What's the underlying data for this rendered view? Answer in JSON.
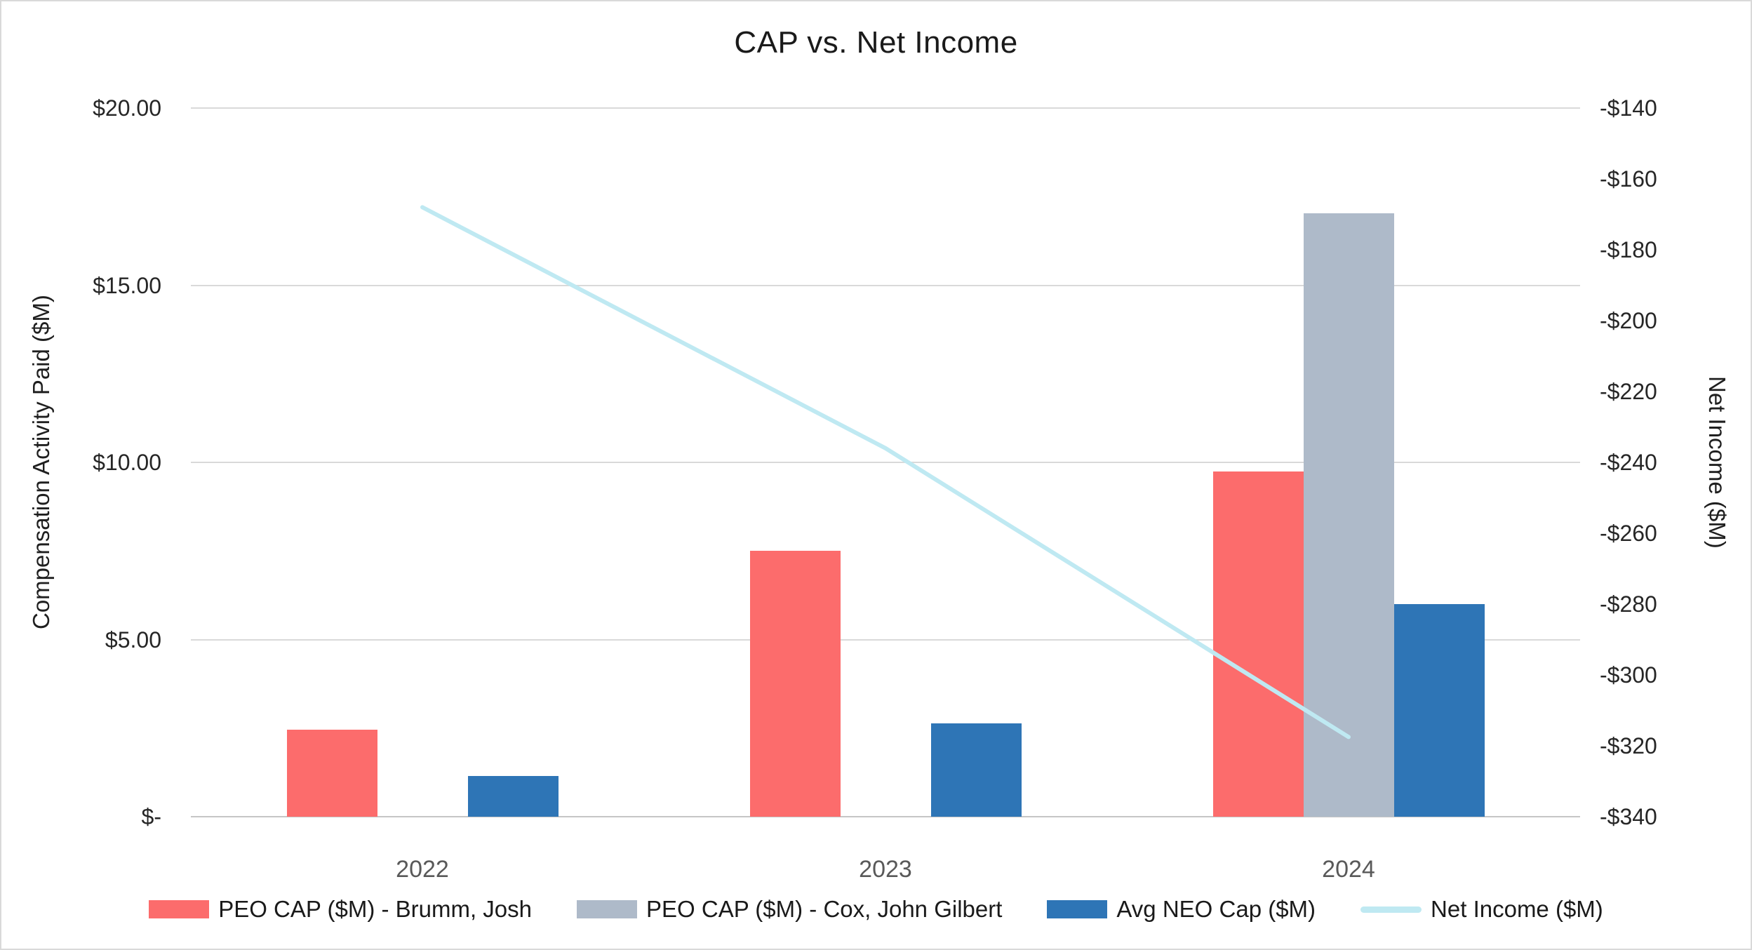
{
  "chart_data": {
    "type": "bar",
    "subtype": "grouped-bars-with-line-overlay",
    "title": "CAP vs. Net Income",
    "categories": [
      "2022",
      "2023",
      "2024"
    ],
    "series": [
      {
        "name": "PEO CAP ($M) - Brumm, Josh",
        "type": "bar",
        "axis": "left",
        "color": "#FC6C6C",
        "values": [
          2.46,
          7.5,
          9.75
        ]
      },
      {
        "name": "PEO CAP ($M) - Cox, John Gilbert",
        "type": "bar",
        "axis": "left",
        "color": "#AEBAC9",
        "values": [
          0,
          0,
          17.03
        ]
      },
      {
        "name": "Avg NEO Cap ($M)",
        "type": "bar",
        "axis": "left",
        "color": "#2E75B6",
        "values": [
          1.14,
          2.63,
          6.01
        ]
      },
      {
        "name": "Net Income ($M)",
        "type": "line",
        "axis": "right",
        "color": "#BFE9F2",
        "values": [
          -168,
          -236,
          -317.5
        ]
      }
    ],
    "left_axis": {
      "label": "Compensation Activity Paid ($M)",
      "min": 0,
      "max": 20,
      "ticks": [
        {
          "label": "$20.00",
          "value": 20
        },
        {
          "label": "$15.00",
          "value": 15
        },
        {
          "label": "$10.00",
          "value": 10
        },
        {
          "label": "$5.00",
          "value": 5
        },
        {
          "label": "$-",
          "value": 0
        }
      ]
    },
    "right_axis": {
      "label": "Net Income ($M)",
      "min": -340,
      "max": -140,
      "ticks": [
        {
          "label": "-$140",
          "value": -140
        },
        {
          "label": "-$160",
          "value": -160
        },
        {
          "label": "-$180",
          "value": -180
        },
        {
          "label": "-$200",
          "value": -200
        },
        {
          "label": "-$220",
          "value": -220
        },
        {
          "label": "-$240",
          "value": -240
        },
        {
          "label": "-$260",
          "value": -260
        },
        {
          "label": "-$280",
          "value": -280
        },
        {
          "label": "-$300",
          "value": -300
        },
        {
          "label": "-$320",
          "value": -320
        },
        {
          "label": "-$340",
          "value": -340
        }
      ]
    },
    "grid": true,
    "legend_position": "bottom",
    "colors": {
      "background": "#FFFFFF",
      "border": "#D9D9D9",
      "gridline": "#D9D9D9",
      "axis_line": "#C6C6C6",
      "tick_text": "#262626",
      "category_text": "#595959",
      "title_text": "#1A1A1A"
    }
  }
}
